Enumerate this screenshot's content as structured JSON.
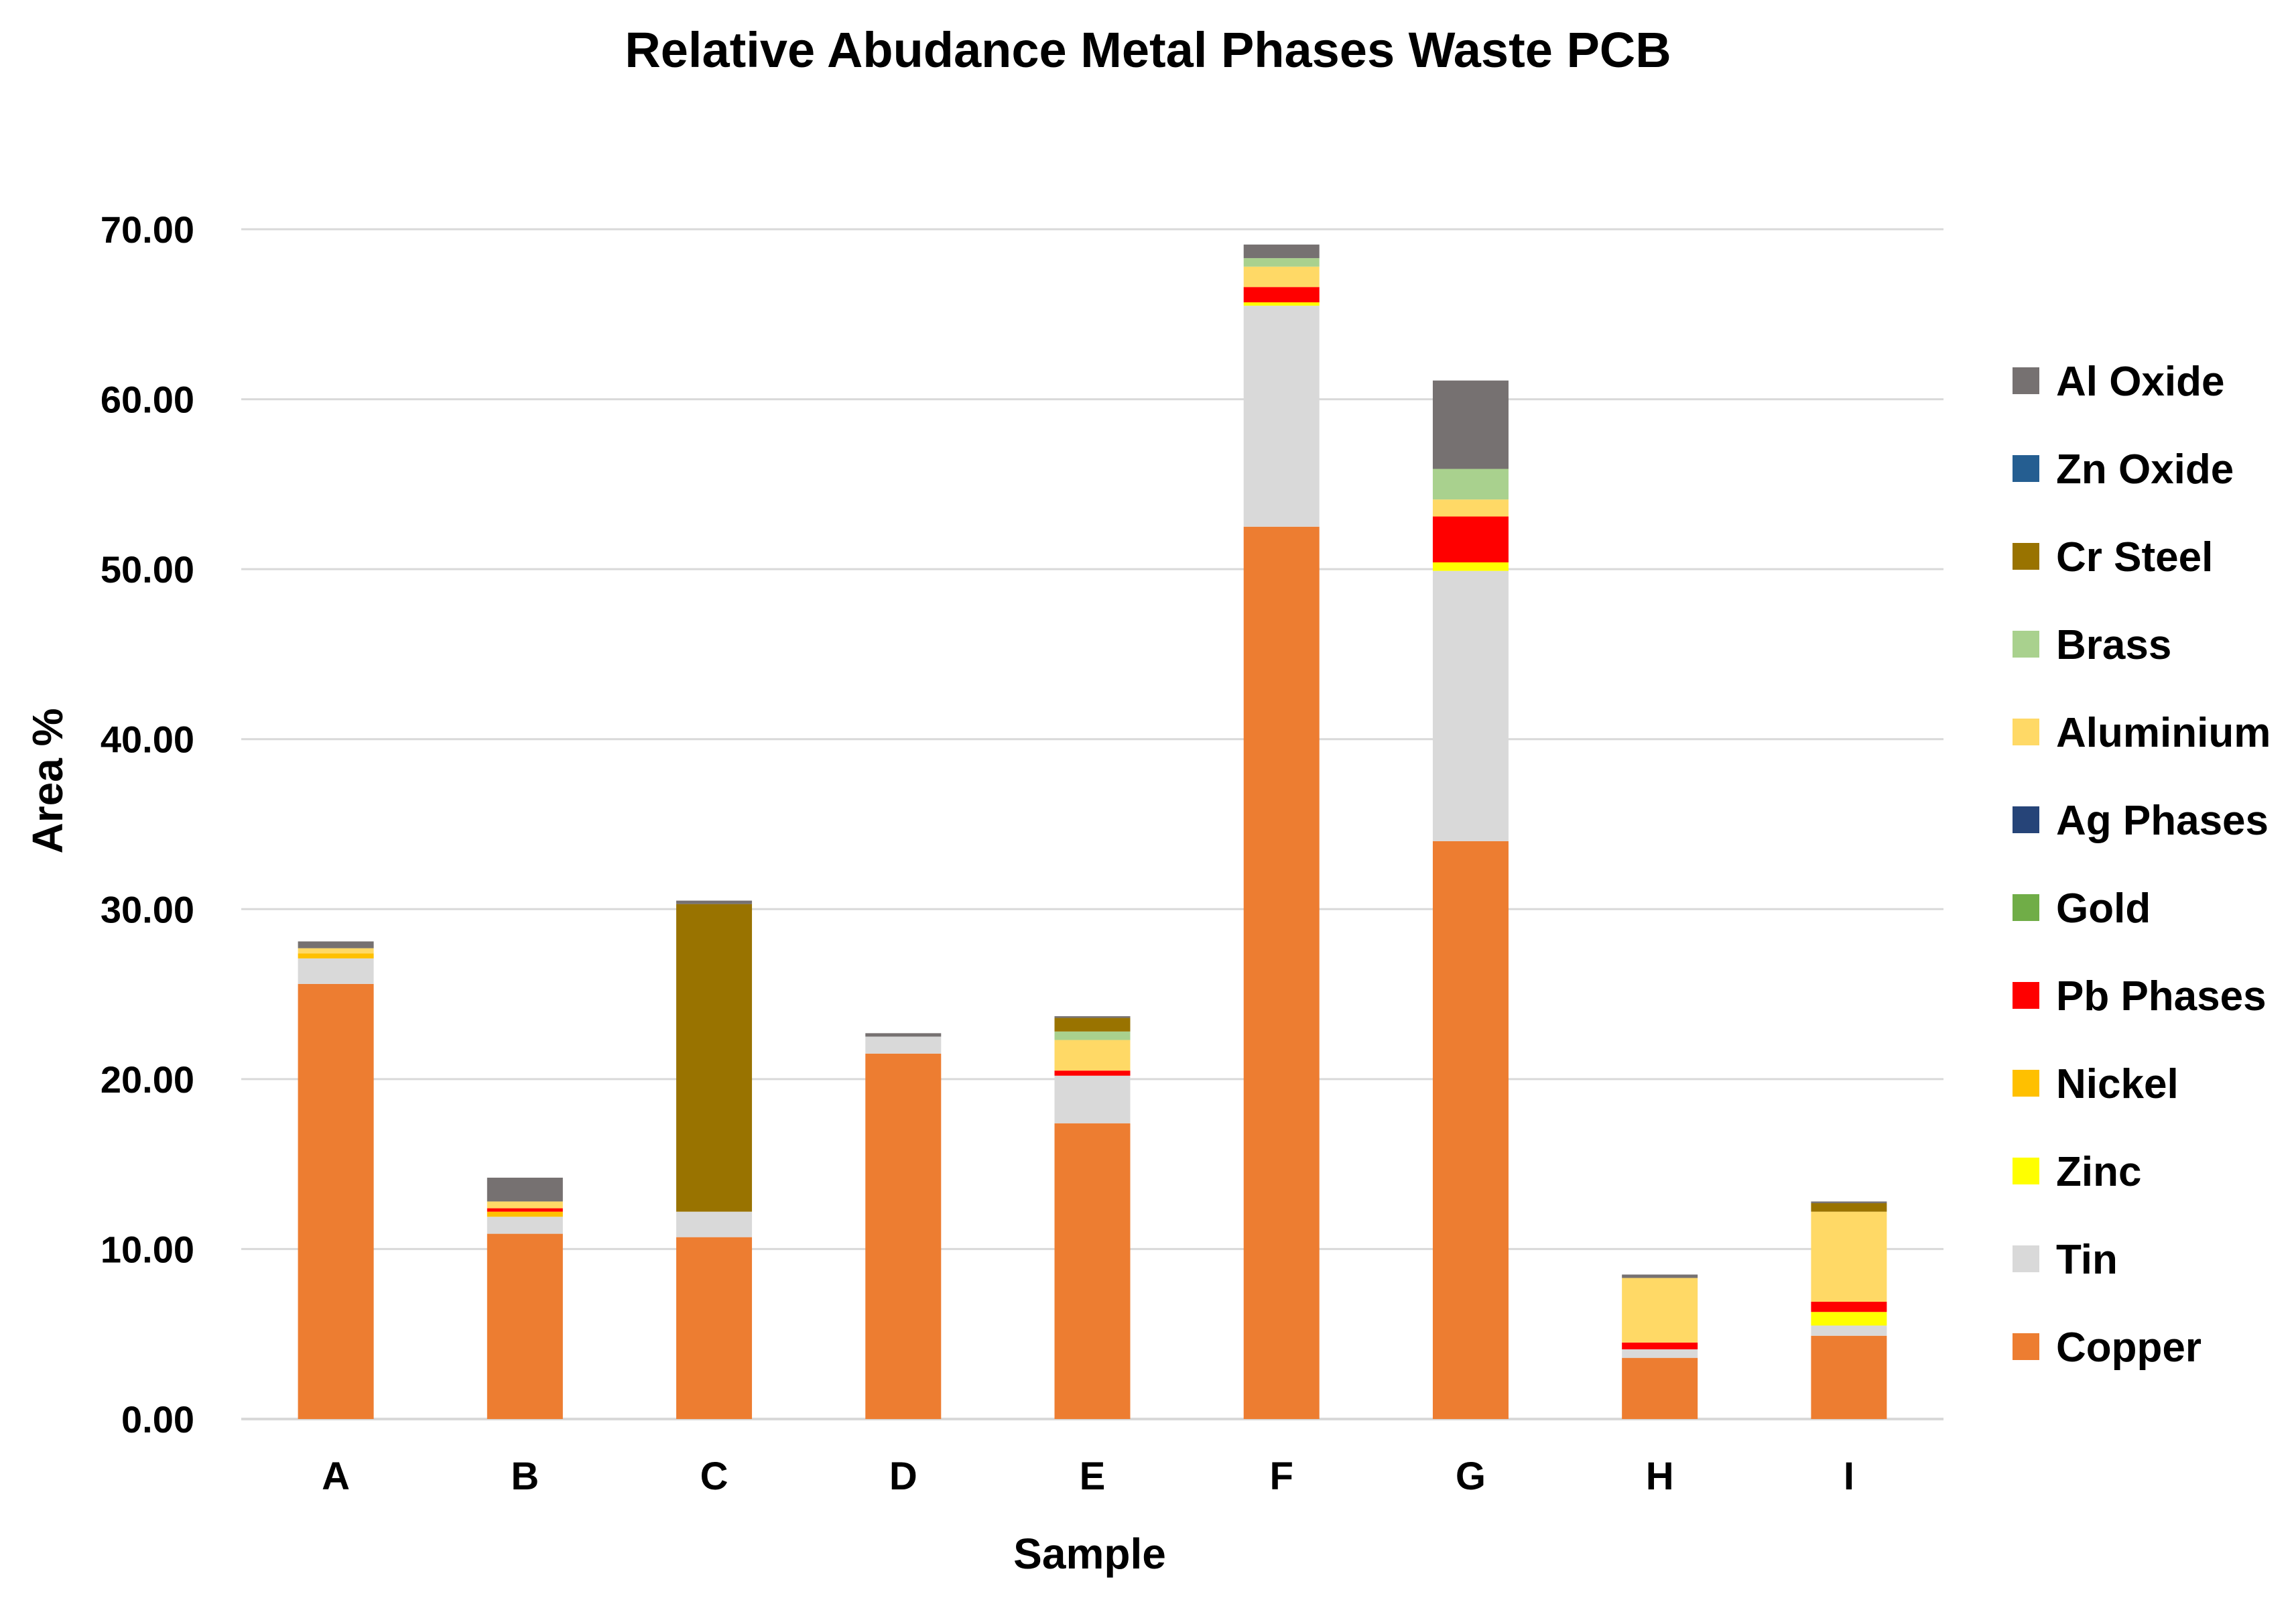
{
  "chart_data": {
    "type": "bar",
    "stacked": true,
    "title": "Relative Abudance Metal Phases Waste PCB",
    "xlabel": "Sample",
    "ylabel": "Area %",
    "ylim": [
      0,
      70
    ],
    "yticks": [
      "0.00",
      "10.00",
      "20.00",
      "30.00",
      "40.00",
      "50.00",
      "60.00",
      "70.00"
    ],
    "grid": true,
    "legend_position": "right",
    "categories": [
      "A",
      "B",
      "C",
      "D",
      "E",
      "F",
      "G",
      "H",
      "I"
    ],
    "series": [
      {
        "name": "Copper",
        "color": "#ED7D31",
        "values": [
          25.6,
          10.9,
          10.7,
          21.5,
          17.4,
          52.5,
          34.0,
          3.6,
          4.9
        ]
      },
      {
        "name": "Tin",
        "color": "#D9D9D9",
        "values": [
          1.5,
          1.0,
          1.5,
          1.0,
          2.8,
          13.0,
          15.9,
          0.5,
          0.6
        ]
      },
      {
        "name": "Zinc",
        "color": "#FFFF00",
        "values": [
          0.0,
          0.0,
          0.0,
          0.0,
          0.0,
          0.2,
          0.5,
          0.0,
          0.8
        ]
      },
      {
        "name": "Nickel",
        "color": "#FFC000",
        "values": [
          0.3,
          0.3,
          0.0,
          0.0,
          0.0,
          0.0,
          0.0,
          0.0,
          0.0
        ]
      },
      {
        "name": "Pb Phases",
        "color": "#FF0000",
        "values": [
          0.0,
          0.2,
          0.0,
          0.0,
          0.3,
          0.9,
          2.7,
          0.4,
          0.6
        ]
      },
      {
        "name": "Gold",
        "color": "#70AD47",
        "values": [
          0.0,
          0.0,
          0.0,
          0.0,
          0.0,
          0.0,
          0.0,
          0.0,
          0.0
        ]
      },
      {
        "name": "Ag Phases",
        "color": "#264478",
        "values": [
          0.0,
          0.0,
          0.0,
          0.0,
          0.0,
          0.0,
          0.0,
          0.0,
          0.0
        ]
      },
      {
        "name": "Aluminium",
        "color": "#FFD966",
        "values": [
          0.3,
          0.4,
          0.0,
          0.0,
          1.8,
          1.2,
          1.0,
          3.8,
          5.3
        ]
      },
      {
        "name": "Brass",
        "color": "#A9D18E",
        "values": [
          0.0,
          0.0,
          0.0,
          0.0,
          0.5,
          0.5,
          1.8,
          0.0,
          0.0
        ]
      },
      {
        "name": "Cr Steel",
        "color": "#997300",
        "values": [
          0.0,
          0.0,
          18.1,
          0.0,
          0.8,
          0.0,
          0.0,
          0.0,
          0.5
        ]
      },
      {
        "name": "Zn Oxide",
        "color": "#255E91",
        "values": [
          0.0,
          0.0,
          0.0,
          0.0,
          0.0,
          0.0,
          0.0,
          0.0,
          0.0
        ]
      },
      {
        "name": "Al Oxide",
        "color": "#767171",
        "values": [
          0.4,
          1.4,
          0.2,
          0.2,
          0.1,
          0.8,
          5.2,
          0.2,
          0.1
        ]
      }
    ]
  }
}
